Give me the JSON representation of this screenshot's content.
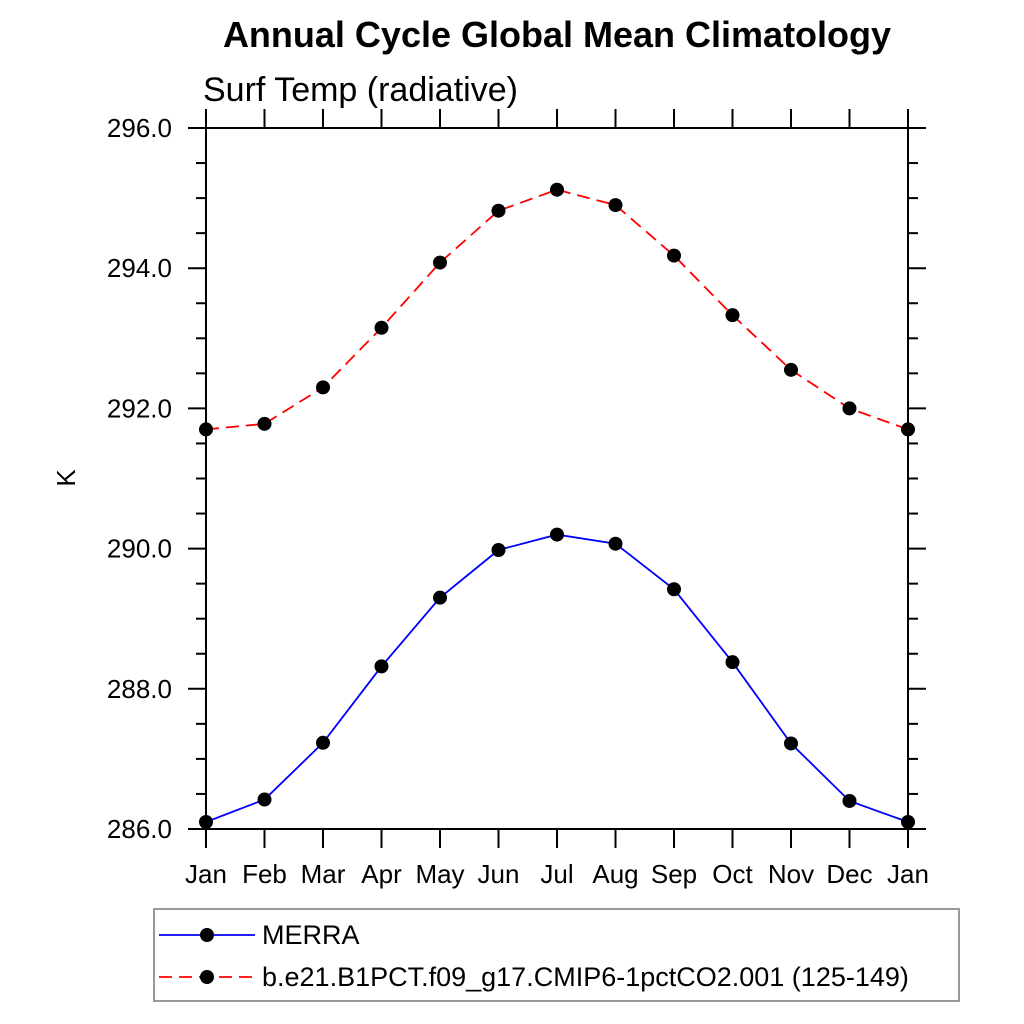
{
  "title": "Annual Cycle Global Mean Climatology",
  "subtitle": "Surf Temp (radiative)",
  "colors": {
    "background": "#ffffff",
    "axis": "#000000",
    "text": "#000000",
    "legend_border": "#999999",
    "merra_line": "#0000ff",
    "model_line": "#ff0000",
    "marker": "#000000"
  },
  "chart_data": {
    "type": "line",
    "title": "Annual Cycle Global Mean Climatology",
    "subtitle": "Surf Temp (radiative)",
    "xlabel": "",
    "ylabel": "K",
    "grid": false,
    "legend_position": "bottom-left",
    "x_categories": [
      "Jan",
      "Feb",
      "Mar",
      "Apr",
      "May",
      "Jun",
      "Jul",
      "Aug",
      "Sep",
      "Oct",
      "Nov",
      "Dec",
      "Jan"
    ],
    "ylim": [
      286.0,
      296.0
    ],
    "ytick_major": [
      {
        "value": 286.0,
        "label": "286.0"
      },
      {
        "value": 288.0,
        "label": "288.0"
      },
      {
        "value": 290.0,
        "label": "290.0"
      },
      {
        "value": 292.0,
        "label": "292.0"
      },
      {
        "value": 294.0,
        "label": "294.0"
      },
      {
        "value": 296.0,
        "label": "296.0"
      }
    ],
    "ytick_minor_step": 0.5,
    "series": [
      {
        "name": "MERRA",
        "line_color": "#0000ff",
        "line_style": "solid",
        "marker": "filled-circle",
        "marker_color": "#000000",
        "values": [
          286.1,
          286.42,
          287.23,
          288.32,
          289.3,
          289.98,
          290.2,
          290.07,
          289.42,
          288.38,
          287.22,
          286.4,
          286.1
        ]
      },
      {
        "name": "b.e21.B1PCT.f09_g17.CMIP6-1pctCO2.001 (125-149)",
        "line_color": "#ff0000",
        "line_style": "dashed",
        "marker": "filled-circle",
        "marker_color": "#000000",
        "values": [
          291.7,
          291.78,
          292.3,
          293.15,
          294.08,
          294.82,
          295.12,
          294.9,
          294.18,
          293.33,
          292.55,
          292.0,
          291.7
        ]
      }
    ]
  }
}
